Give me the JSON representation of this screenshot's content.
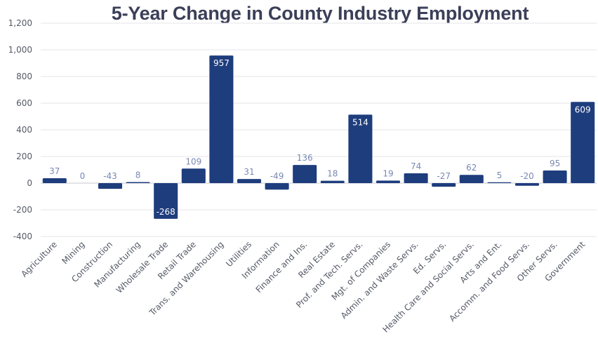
{
  "chart_data": {
    "type": "bar",
    "title": "5-Year Change in County Industry Employment",
    "xlabel": "",
    "ylabel": "",
    "ylim": [
      -400,
      1200
    ],
    "yticks": [
      -400,
      -200,
      0,
      200,
      400,
      600,
      800,
      "1,000",
      "1,200"
    ],
    "grid": true,
    "bar_color": "#1e3d7d",
    "categories": [
      "Agriculture",
      "Mining",
      "Construction",
      "Manufacturing",
      "Wholesale Trade",
      "Retail Trade",
      "Trans. and Warehousing",
      "Utilities",
      "Information",
      "Finance and Ins.",
      "Real Estate",
      "Prof. and Tech. Servs.",
      "Mgt. of Companies",
      "Admin. and Waste Servs.",
      "Ed. Servs.",
      "Health Care and Social Servs.",
      "Arts and Ent.",
      "Accomm. and Food Servs.",
      "Other Servs.",
      "Government"
    ],
    "values": [
      37,
      0,
      -43,
      8,
      -268,
      109,
      957,
      31,
      -49,
      136,
      18,
      514,
      19,
      74,
      -27,
      62,
      5,
      -20,
      95,
      609
    ]
  }
}
